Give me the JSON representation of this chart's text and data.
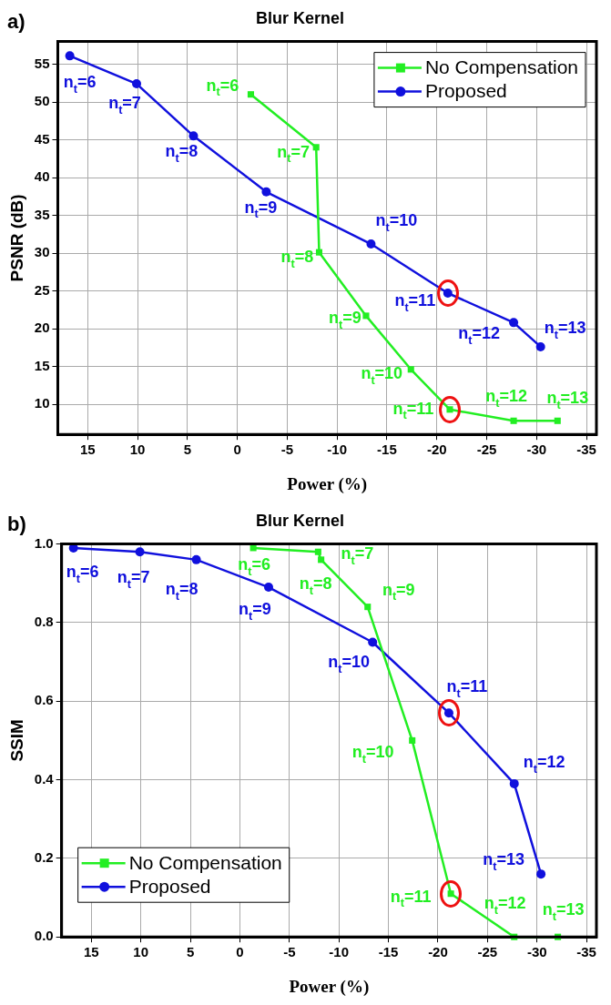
{
  "chart_data": [
    {
      "type": "line",
      "title": "Blur Kernel",
      "xlabel": "Power (%)",
      "ylabel": "PSNR (dB)",
      "xlim": [
        18,
        -36
      ],
      "xticks": [
        15,
        10,
        5,
        0,
        -5,
        -10,
        -15,
        -20,
        -25,
        -30,
        -35
      ],
      "ylim": [
        6,
        58
      ],
      "yticks": [
        10,
        15,
        20,
        25,
        30,
        35,
        40,
        45,
        50,
        55
      ],
      "grid": true,
      "legend": "top right",
      "line_style": "solid",
      "series": [
        {
          "name": "No Compensation",
          "color": "#22ee22",
          "marker": "square",
          "x": [
            -1.35,
            -7.9,
            -8.2,
            -12.9,
            -17.4,
            -21.3,
            -27.7,
            -32.1
          ],
          "values": [
            51.0,
            44.0,
            30.1,
            21.7,
            14.6,
            9.3,
            7.8,
            7.8
          ]
        },
        {
          "name": "Proposed",
          "color": "#1010dd",
          "marker": "circle",
          "x": [
            16.8,
            10.1,
            4.4,
            -2.9,
            -13.4,
            -21.1,
            -27.7,
            -30.4
          ],
          "values": [
            56.1,
            52.4,
            45.5,
            38.1,
            31.2,
            24.7,
            20.8,
            17.6
          ]
        }
      ],
      "annotations": [
        "a)",
        {
          "text": "n$_{t}$=6",
          "x": -1.35,
          "y": 51.0
        },
        {
          "text": "n$_{t}$=7",
          "x": -7.9,
          "y": 44.0
        },
        {
          "text": "n$_{t}$=8",
          "x": -8.2,
          "y": 30.1
        },
        {
          "text": "n$_{t}$=9",
          "x": -12.9,
          "y": 21.7
        },
        {
          "text": "n$_{t}$=10",
          "x": -17.4,
          "y": 14.6
        },
        {
          "text": "n$_{t}$=11",
          "x": -21.3,
          "y": 9.3
        },
        {
          "text": "n$_{t}$=12",
          "x": -27.7,
          "y": 7.8
        },
        {
          "text": "n$_{t}$=13",
          "x": -32.1,
          "y": 7.8
        },
        {
          "text": "n$_{t}$=6",
          "x": 16.8,
          "y": 56.1
        },
        {
          "text": "n$_{t}$=7",
          "x": 10.1,
          "y": 52.4
        },
        {
          "text": "n$_{t}$=8",
          "x": 4.4,
          "y": 45.5
        },
        {
          "text": "n$_{t}$=9",
          "x": -2.9,
          "y": 38.1
        },
        {
          "text": "n$_{t}$=10",
          "x": -13.4,
          "y": 31.2
        },
        {
          "text": "n$_{t}$=11",
          "x": -21.1,
          "y": 24.7
        },
        {
          "text": "n$_{t}$=12",
          "x": -27.7,
          "y": 20.8
        },
        {
          "text": "n$_{t}$=13",
          "x": -30.4,
          "y": 17.6
        }
      ]
    },
    {
      "type": "line",
      "title": "Blur Kernel",
      "xlabel": "Power (%)",
      "ylabel": "SSIM",
      "xlim": [
        18,
        -36
      ],
      "xticks": [
        15,
        10,
        5,
        0,
        -5,
        -10,
        -15,
        -20,
        -25,
        -30,
        -35
      ],
      "ylim": [
        0,
        1
      ],
      "yticks": [
        {
          "value": 0,
          "label": "0.0"
        },
        0.2,
        0.4,
        0.6,
        0.8,
        {
          "value": 1,
          "label": "1.0"
        }
      ],
      "grid": true,
      "legend": "bottom left",
      "line_style": "solid",
      "series": [
        {
          "name": "No Compensation",
          "color": "#22ee22",
          "marker": "square",
          "x": [
            -1.35,
            -7.9,
            -8.2,
            -12.9,
            -17.4,
            -21.3,
            -27.7,
            -32.1
          ],
          "values": [
            0.99,
            0.98,
            0.96,
            0.84,
            0.5,
            0.11,
            0.0,
            0.0
          ]
        },
        {
          "name": "Proposed",
          "color": "#1010dd",
          "marker": "circle",
          "x": [
            16.8,
            10.1,
            4.4,
            -2.9,
            -13.4,
            -21.1,
            -27.7,
            -30.4
          ],
          "values": [
            0.99,
            0.98,
            0.96,
            0.89,
            0.75,
            0.57,
            0.39,
            0.16
          ]
        }
      ],
      "annotations": [
        "b)",
        {
          "text": "n$_{t}$=6",
          "x": -1.35,
          "y": 0.99
        },
        {
          "text": "n$_{t}$=7",
          "x": -7.9,
          "y": 0.98
        },
        {
          "text": "n$_{t}$=8",
          "x": -8.2,
          "y": 0.96
        },
        {
          "text": "n$_{t}$=9",
          "x": -12.9,
          "y": 0.84
        },
        {
          "text": "n$_{t}$=10",
          "x": -17.4,
          "y": 0.5
        },
        {
          "text": "n$_{t}$=11",
          "x": -21.3,
          "y": 0.11
        },
        {
          "text": "n$_{t}$=12",
          "x": -27.7,
          "y": 0.0
        },
        {
          "text": "n$_{t}$=13",
          "x": -32.1,
          "y": 0.0
        },
        {
          "text": "n$_{t}$=6",
          "x": 16.8,
          "y": 0.99
        },
        {
          "text": "n$_{t}$=7",
          "x": 10.1,
          "y": 0.98
        },
        {
          "text": "n$_{t}$=8",
          "x": 4.4,
          "y": 0.96
        },
        {
          "text": "n$_{t}$=9",
          "x": -2.9,
          "y": 0.89
        },
        {
          "text": "n$_{t}$=10",
          "x": -13.4,
          "y": 0.75
        },
        {
          "text": "n$_{t}$=11",
          "x": -21.1,
          "y": 0.57
        },
        {
          "text": "n$_{t}$=12",
          "x": -27.7,
          "y": 0.39
        },
        {
          "text": "n$_{t}$=13",
          "x": -30.4,
          "y": 0.16
        }
      ]
    }
  ]
}
